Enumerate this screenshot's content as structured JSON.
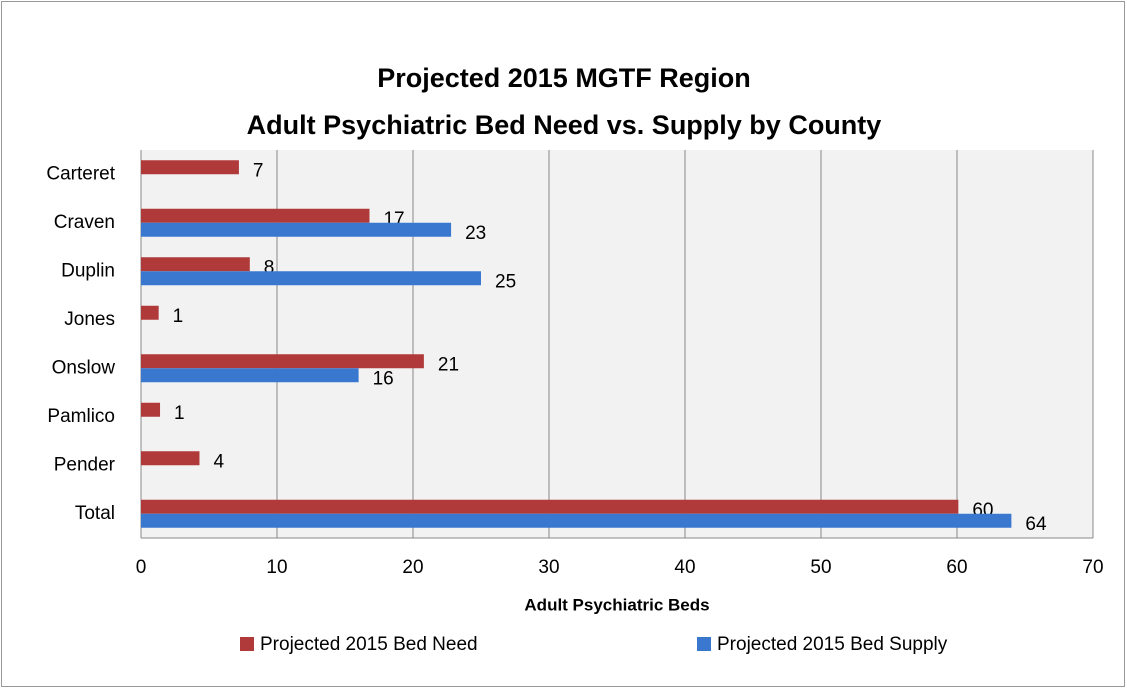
{
  "chart_data": {
    "type": "hbar",
    "title": [
      "Projected 2015 MGTF Region",
      "Adult Psychiatric Bed Need vs. Supply by County"
    ],
    "x_label": "Adult Psychiatric Beds",
    "categories": [
      "Carteret",
      "Craven",
      "Duplin",
      "Jones",
      "Onslow",
      "Pamlico",
      "Pender",
      "Total"
    ],
    "series": [
      {
        "name": "Projected 2015 Bed Need",
        "color": "#b03a3a",
        "values": [
          7.2,
          16.8,
          8,
          1.3,
          20.8,
          1.4,
          4.3,
          60.1
        ],
        "value_labels": [
          "7",
          "17",
          "8",
          "1",
          "21",
          "1",
          "4",
          "60"
        ]
      },
      {
        "name": "Projected 2015 Bed Supply",
        "color": "#3a78d0",
        "values": [
          null,
          22.8,
          25,
          null,
          16,
          null,
          null,
          64
        ],
        "value_labels": [
          null,
          "23",
          "25",
          null,
          "16",
          null,
          null,
          "64"
        ]
      }
    ],
    "xlim": [
      0,
      70
    ],
    "xticks": [
      0,
      10,
      20,
      30,
      40,
      50,
      60,
      70
    ],
    "grid": true
  }
}
